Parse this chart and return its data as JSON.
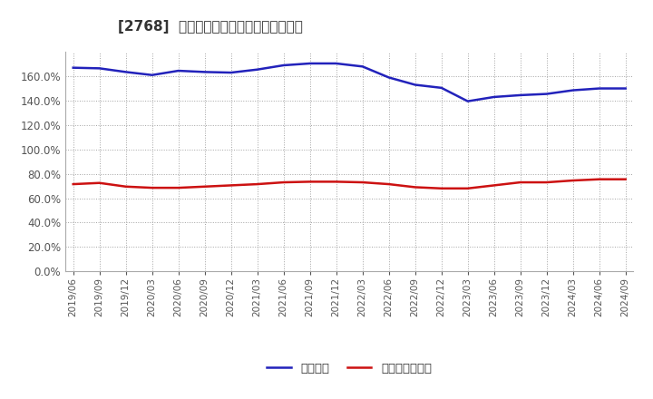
{
  "title": "[2768]  固定比率、固定長期適合率の推移",
  "x_labels": [
    "2019/06",
    "2019/09",
    "2019/12",
    "2020/03",
    "2020/06",
    "2020/09",
    "2020/12",
    "2021/03",
    "2021/06",
    "2021/09",
    "2021/12",
    "2022/03",
    "2022/06",
    "2022/09",
    "2022/12",
    "2023/03",
    "2023/06",
    "2023/09",
    "2023/12",
    "2024/03",
    "2024/06",
    "2024/09"
  ],
  "fixed_ratio": [
    167.0,
    166.5,
    163.5,
    161.0,
    164.5,
    163.5,
    163.0,
    165.5,
    169.0,
    170.5,
    170.5,
    168.0,
    159.0,
    153.0,
    150.5,
    139.5,
    143.0,
    144.5,
    145.5,
    148.5,
    150.0,
    150.0
  ],
  "fixed_long_ratio": [
    71.5,
    72.5,
    69.5,
    68.5,
    68.5,
    69.5,
    70.5,
    71.5,
    73.0,
    73.5,
    73.5,
    73.0,
    71.5,
    69.0,
    68.0,
    68.0,
    70.5,
    73.0,
    73.0,
    74.5,
    75.5,
    75.5
  ],
  "fixed_ratio_color": "#2222bb",
  "fixed_long_ratio_color": "#cc1111",
  "bg_color": "#ffffff",
  "plot_bg_color": "#ffffff",
  "grid_color": "#999999",
  "yticks": [
    0.0,
    20.0,
    40.0,
    60.0,
    80.0,
    100.0,
    120.0,
    140.0,
    160.0
  ],
  "ylim": [
    0,
    180
  ],
  "legend_labels": [
    "固定比率",
    "固定長期適合率"
  ],
  "line_width": 1.8
}
